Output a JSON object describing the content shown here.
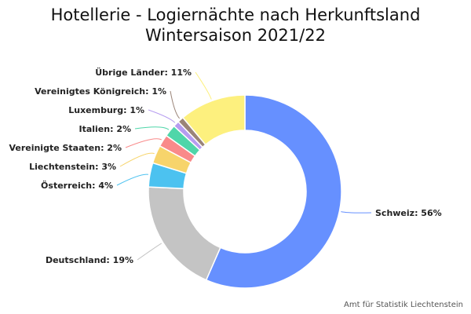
{
  "chart_data": {
    "type": "pie",
    "variant": "donut",
    "title_line1": "Hotellerie - Logiernächte nach Herkunftsland",
    "title_line2": "Wintersaison 2021/22",
    "credit": "Amt für Statistik Liechtenstein",
    "unit": "%",
    "legend": "none",
    "slices": [
      {
        "name": "Schweiz",
        "label": "Schweiz: 56%",
        "value": 56,
        "color": "#6690ff"
      },
      {
        "name": "Deutschland",
        "label": "Deutschland: 19%",
        "value": 19,
        "color": "#c4c4c4"
      },
      {
        "name": "Österreich",
        "label": "Österreich: 4%",
        "value": 4,
        "color": "#4cc2f0"
      },
      {
        "name": "Liechtenstein",
        "label": "Liechtenstein: 3%",
        "value": 3,
        "color": "#f7d46b"
      },
      {
        "name": "Vereinigte Staaten",
        "label": "Vereinigte Staaten: 2%",
        "value": 2,
        "color": "#f98a8a"
      },
      {
        "name": "Italien",
        "label": "Italien: 2%",
        "value": 2,
        "color": "#4fd6a9"
      },
      {
        "name": "Luxemburg",
        "label": "Luxemburg: 1%",
        "value": 1,
        "color": "#b69cf0"
      },
      {
        "name": "Vereinigtes Königreich",
        "label": "Vereinigtes Königreich: 1%",
        "value": 1,
        "color": "#9a8478"
      },
      {
        "name": "Übrige Länder",
        "label": "Übrige Länder: 11%",
        "value": 11,
        "color": "#fdf07e"
      }
    ]
  }
}
